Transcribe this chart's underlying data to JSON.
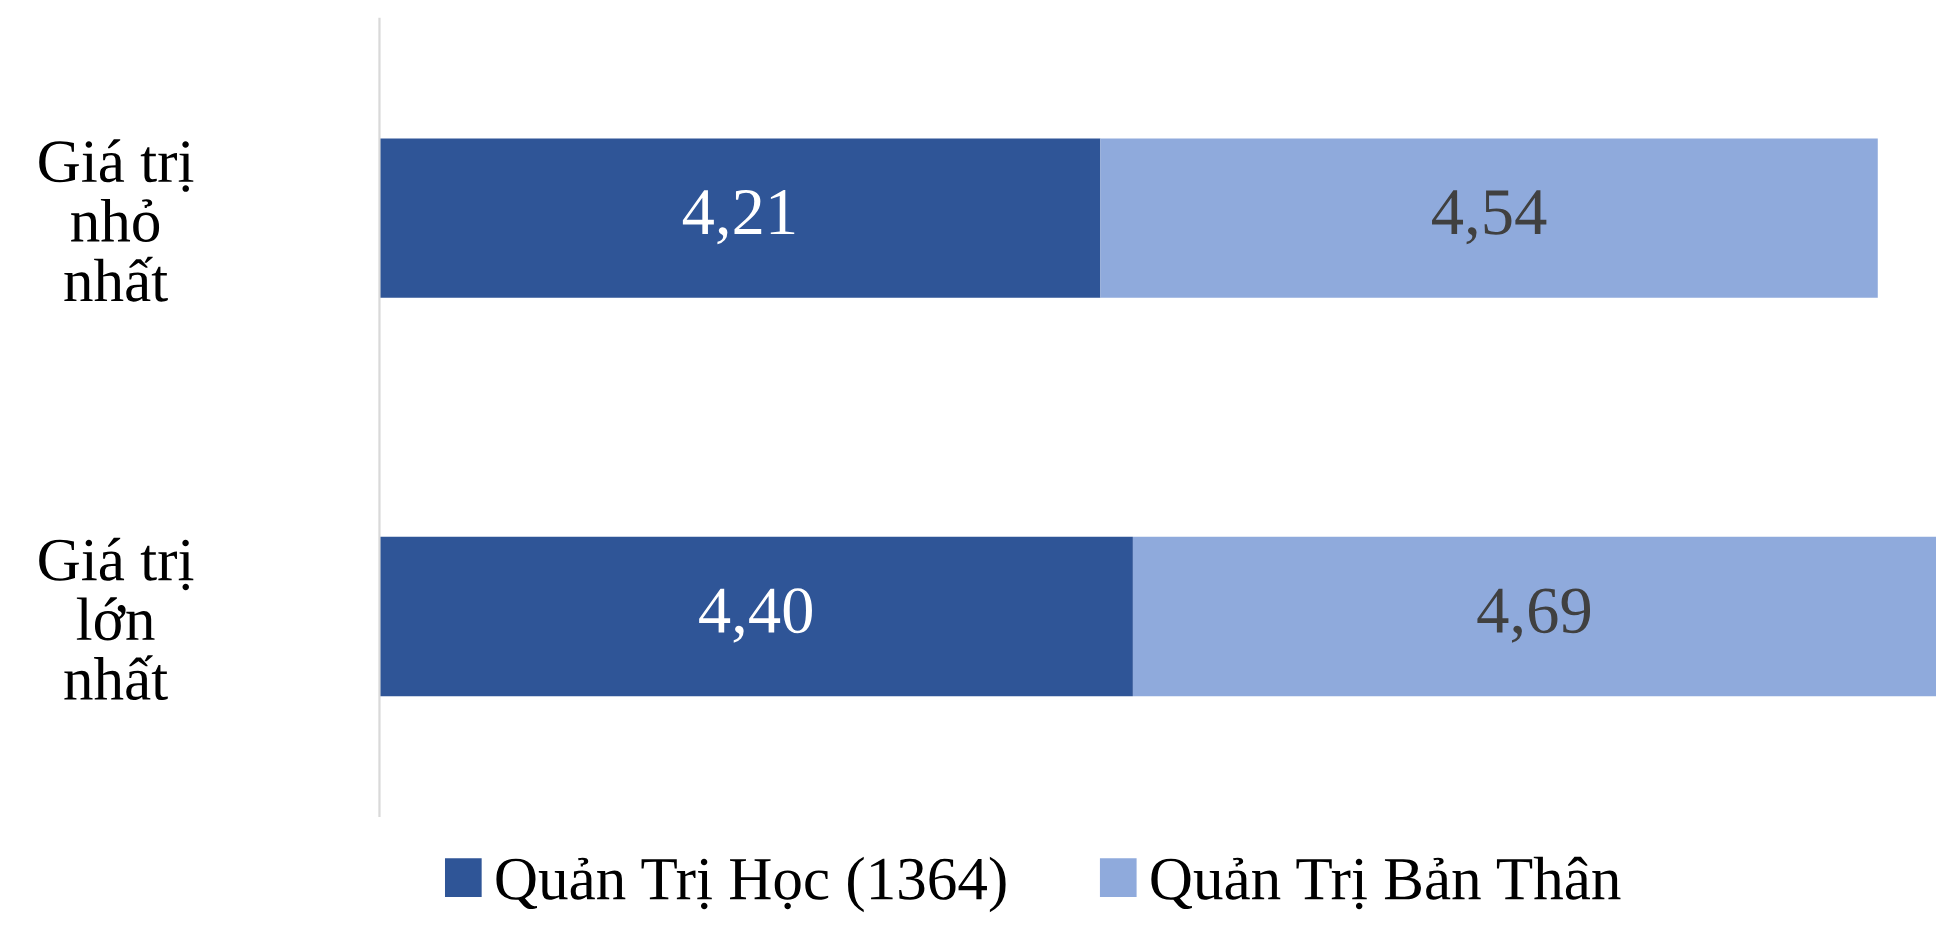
{
  "chart_data": {
    "type": "bar",
    "orientation": "horizontal",
    "stacked": true,
    "categories": [
      "Giá trị nhỏ nhất",
      "Giá trị lớn nhất"
    ],
    "xlim": [
      0,
      9.09
    ],
    "tick_labels": "y",
    "grid": false,
    "legend": "bottom",
    "series": [
      {
        "name": "Quản Trị Học (1364)",
        "color": "#2f5597",
        "values": [
          4.21,
          4.4
        ],
        "value_labels": [
          "4,21",
          "4,40"
        ]
      },
      {
        "name": "Quản Trị Bản Thân",
        "color": "#8faadc",
        "values": [
          4.54,
          4.69
        ],
        "value_labels": [
          "4,54",
          "4,69"
        ]
      }
    ]
  }
}
